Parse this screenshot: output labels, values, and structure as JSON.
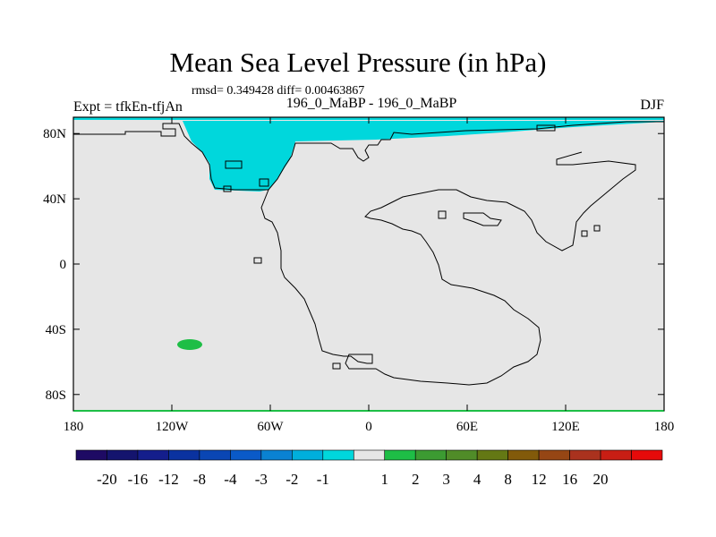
{
  "chart_data": {
    "type": "heatmap",
    "title": "Mean Sea Level Pressure (in hPa)",
    "stats": "rmsd= 0.349428 diff= 0.00463867",
    "left_label": "Expt = tfkEn-tfjAn",
    "center_label": "196_0_MaBP - 196_0_MaBP",
    "right_label": "DJF",
    "lon_range": [
      -180,
      180
    ],
    "lat_range": [
      -90,
      90
    ],
    "x_ticks": [
      {
        "value": -180,
        "label": "180"
      },
      {
        "value": -120,
        "label": "120W"
      },
      {
        "value": -60,
        "label": "60W"
      },
      {
        "value": 0,
        "label": "0"
      },
      {
        "value": 60,
        "label": "60E"
      },
      {
        "value": 120,
        "label": "120E"
      },
      {
        "value": 180,
        "label": "180"
      }
    ],
    "y_ticks": [
      {
        "value": 80,
        "label": "80N"
      },
      {
        "value": 40,
        "label": "40N"
      },
      {
        "value": 0,
        "label": "0"
      },
      {
        "value": -40,
        "label": "40S"
      },
      {
        "value": -80,
        "label": "80S"
      }
    ],
    "background_level": {
      "range": [
        -1,
        1
      ],
      "color": "#e6e6e6"
    },
    "anomaly_regions": [
      {
        "level": "-2 to -1",
        "color": "#00d7dc",
        "description_lat_lon": "northern high latitudes, 100W-20W and 20W-180E"
      },
      {
        "level": "1 to 2",
        "color": "#1ebe46",
        "center": {
          "lon": -110,
          "lat": -48
        }
      }
    ],
    "colorbar": {
      "colors": [
        "#1e0a64",
        "#14146e",
        "#141e8c",
        "#0a32a0",
        "#0a46b4",
        "#0a5ac8",
        "#0a82d2",
        "#00afdc",
        "#00d7dc",
        "#e6e6e6",
        "#1ebe46",
        "#3c9b32",
        "#508c28",
        "#647814",
        "#825a0a",
        "#964614",
        "#aa321e",
        "#c81e14",
        "#e60a0a"
      ],
      "labels": [
        "-20",
        "-16",
        "-12",
        "-8",
        "-4",
        "-3",
        "-2",
        "-1",
        "1",
        "2",
        "3",
        "4",
        "8",
        "12",
        "16",
        "20"
      ],
      "label_positions": [
        1,
        2,
        3,
        4,
        5,
        6,
        7,
        8,
        10,
        11,
        12,
        13,
        14,
        15,
        16,
        17
      ]
    }
  }
}
